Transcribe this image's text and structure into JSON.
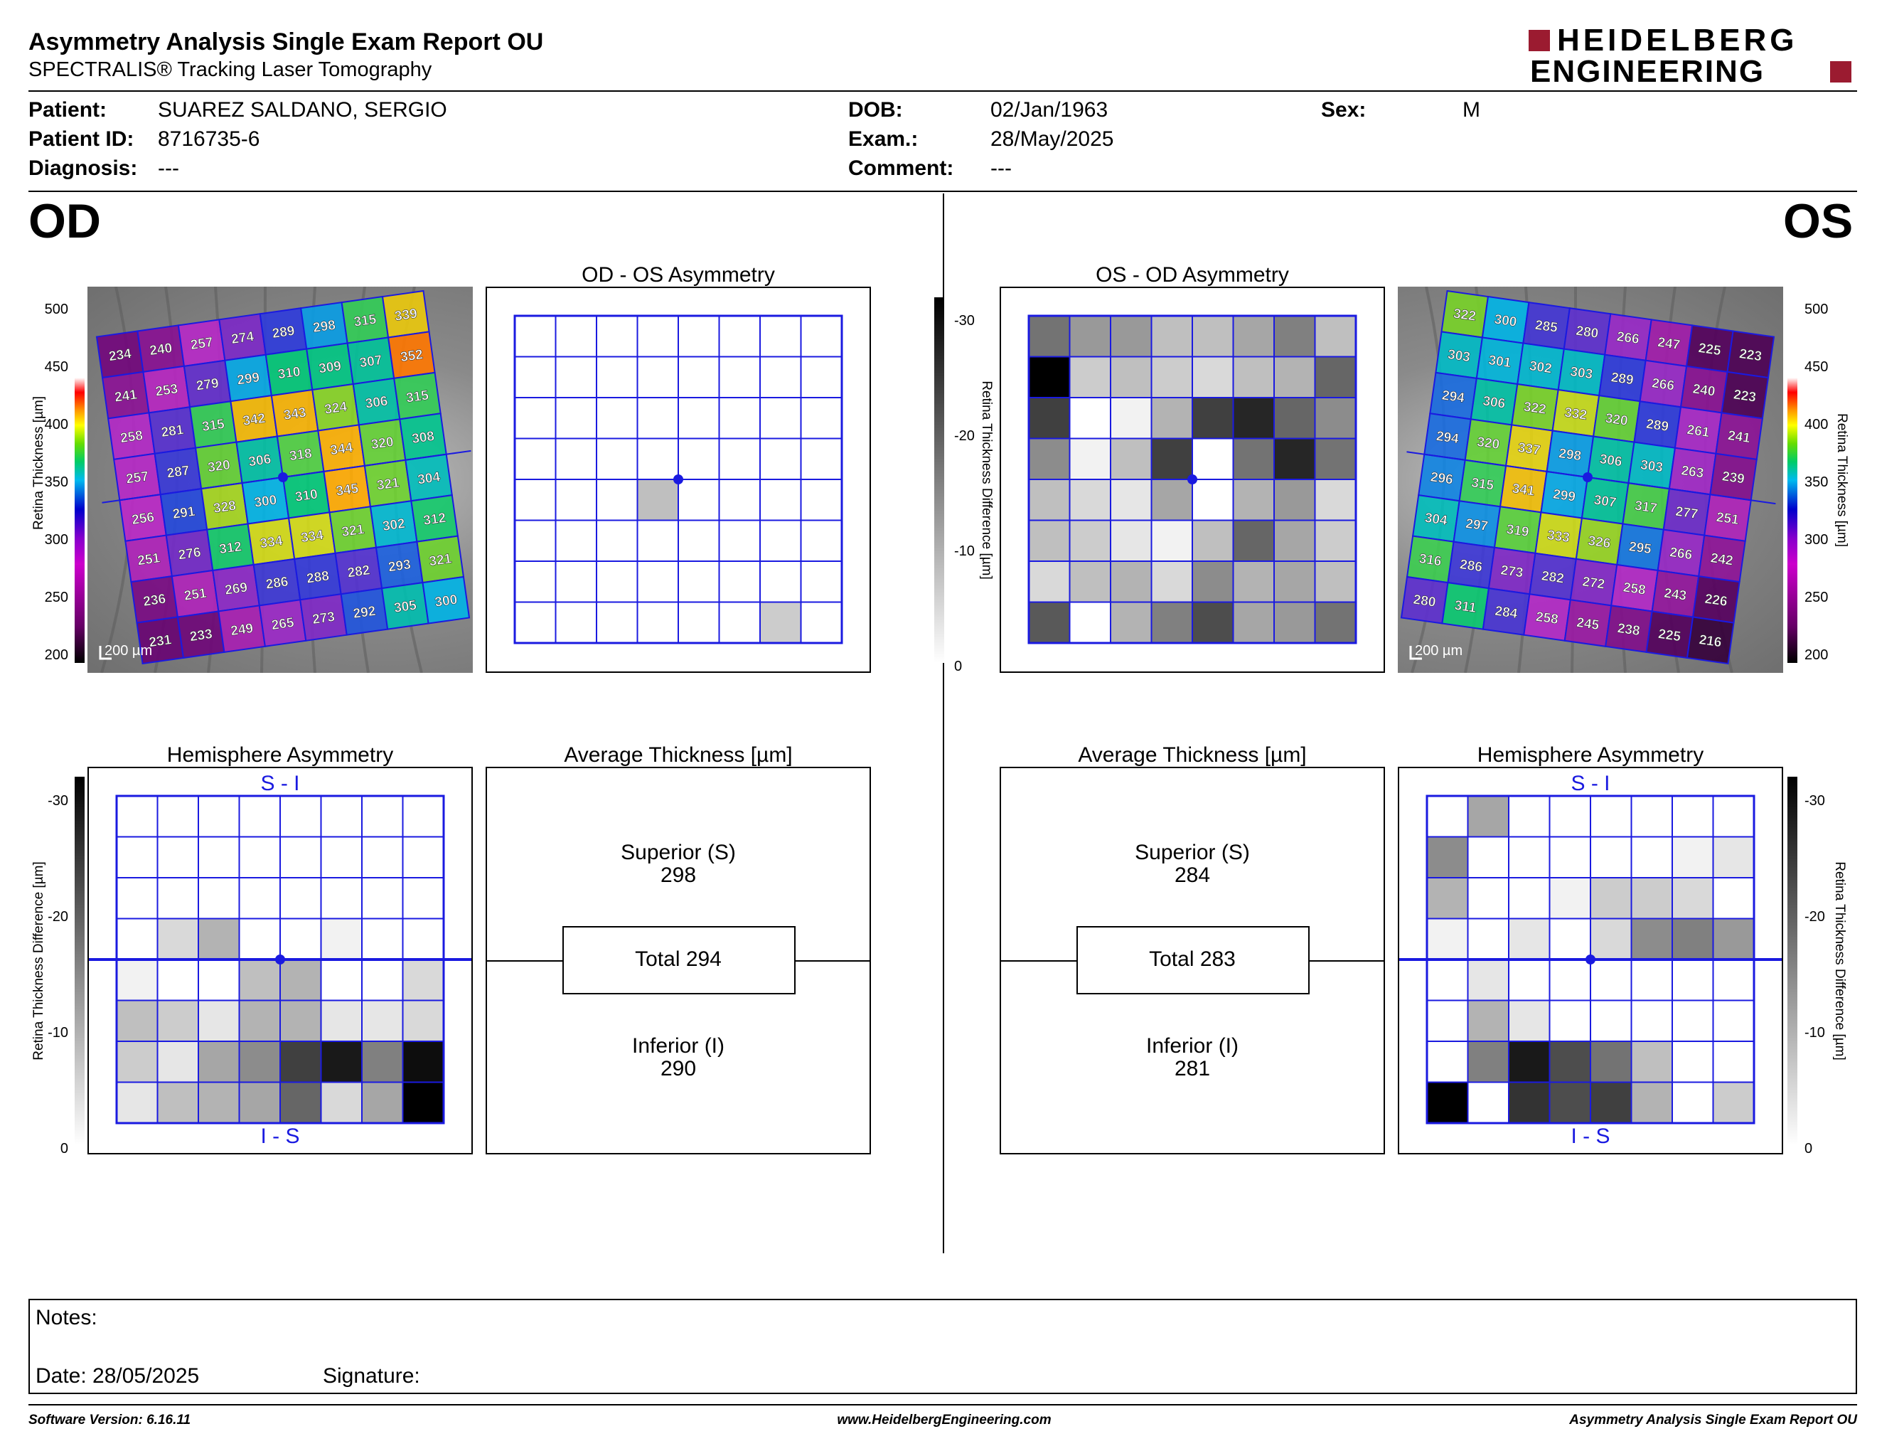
{
  "header": {
    "title": "Asymmetry Analysis Single Exam Report OU",
    "subtitle": "SPECTRALIS® Tracking Laser Tomography",
    "logo_line1": "HEIDELBERG",
    "logo_line2": "ENGINEERING"
  },
  "patient": {
    "patient_label": "Patient:",
    "patient_value": "SUAREZ SALDANO, SERGIO",
    "id_label": "Patient ID:",
    "id_value": "8716735-6",
    "diagnosis_label": "Diagnosis:",
    "diagnosis_value": "---",
    "dob_label": "DOB:",
    "dob_value": "02/Jan/1963",
    "exam_label": "Exam.:",
    "exam_value": "28/May/2025",
    "comment_label": "Comment:",
    "comment_value": "---",
    "sex_label": "Sex:",
    "sex_value": "M"
  },
  "eyes": {
    "left_label": "OD",
    "right_label": "OS"
  },
  "titles": {
    "od_os_asym": "OD - OS Asymmetry",
    "os_od_asym": "OS - OD Asymmetry",
    "hemi": "Hemisphere Asymmetry",
    "avg": "Average Thickness [µm]"
  },
  "scale": {
    "thickness_label": "Retina  Thickness [µm]",
    "thickness_ticks": [
      "500",
      "450",
      "400",
      "350",
      "300",
      "250",
      "200"
    ],
    "diff_label": "Retina Thickness Difference [µm]",
    "diff_ticks": [
      "-30",
      "-20",
      "-10",
      "0"
    ],
    "scalebar": "200 µm"
  },
  "hemi_labels": {
    "top": "S - I",
    "bottom": "I - S"
  },
  "od": {
    "grid": [
      [
        234,
        240,
        257,
        274,
        289,
        298,
        315,
        339
      ],
      [
        241,
        253,
        279,
        299,
        310,
        309,
        307,
        352
      ],
      [
        258,
        281,
        315,
        342,
        343,
        324,
        306,
        315
      ],
      [
        257,
        287,
        320,
        306,
        318,
        344,
        320,
        308
      ],
      [
        256,
        291,
        328,
        300,
        310,
        345,
        321,
        304
      ],
      [
        251,
        276,
        312,
        334,
        334,
        321,
        302,
        312
      ],
      [
        236,
        251,
        269,
        286,
        288,
        282,
        293,
        321
      ],
      [
        231,
        233,
        249,
        265,
        273,
        292,
        305,
        300
      ]
    ],
    "asym_shades": [
      [
        0,
        0,
        0,
        0,
        0,
        0,
        0,
        0
      ],
      [
        0,
        0,
        0,
        0,
        0,
        0,
        0,
        0
      ],
      [
        0,
        0,
        0,
        0,
        0,
        0,
        0,
        0
      ],
      [
        0,
        0,
        0,
        0,
        0,
        0,
        0,
        0
      ],
      [
        0,
        0,
        0,
        0.25,
        0,
        0,
        0,
        0
      ],
      [
        0,
        0,
        0,
        0,
        0,
        0,
        0,
        0
      ],
      [
        0,
        0,
        0,
        0,
        0,
        0,
        0,
        0
      ],
      [
        0,
        0,
        0,
        0,
        0,
        0,
        0.2,
        0
      ]
    ],
    "hemi_shades": [
      [
        0,
        0,
        0,
        0,
        0,
        0,
        0,
        0
      ],
      [
        0,
        0,
        0,
        0,
        0,
        0,
        0,
        0
      ],
      [
        0,
        0,
        0,
        0,
        0,
        0,
        0,
        0
      ],
      [
        0,
        0.15,
        0.3,
        0,
        0,
        0.05,
        0,
        0
      ],
      [
        0.05,
        0,
        0,
        0.25,
        0.3,
        0,
        0,
        0.15
      ],
      [
        0.25,
        0.2,
        0.1,
        0.3,
        0.3,
        0.1,
        0.1,
        0.15
      ],
      [
        0.2,
        0.1,
        0.35,
        0.45,
        0.75,
        0.9,
        0.5,
        0.95
      ],
      [
        0.1,
        0.25,
        0.3,
        0.35,
        0.6,
        0.15,
        0.35,
        1.0
      ]
    ],
    "superior_label": "Superior (S)",
    "superior_value": "298",
    "total_label": "Total 294",
    "inferior_label": "Inferior (I)",
    "inferior_value": "290"
  },
  "os": {
    "grid": [
      [
        322,
        300,
        285,
        280,
        266,
        247,
        225,
        223
      ],
      [
        303,
        301,
        302,
        303,
        289,
        266,
        240,
        223
      ],
      [
        294,
        306,
        322,
        332,
        320,
        289,
        261,
        241
      ],
      [
        294,
        320,
        337,
        298,
        306,
        303,
        263,
        239
      ],
      [
        296,
        315,
        341,
        299,
        307,
        317,
        277,
        251
      ],
      [
        304,
        297,
        319,
        333,
        326,
        295,
        266,
        242
      ],
      [
        316,
        286,
        273,
        282,
        272,
        258,
        243,
        226
      ],
      [
        280,
        311,
        284,
        258,
        245,
        238,
        225,
        216
      ]
    ],
    "asym_shades": [
      [
        0.55,
        0.4,
        0.4,
        0.25,
        0.25,
        0.35,
        0.5,
        0.25
      ],
      [
        1.0,
        0.2,
        0.25,
        0.2,
        0.15,
        0.25,
        0.3,
        0.6
      ],
      [
        0.75,
        0,
        0.05,
        0.3,
        0.75,
        0.85,
        0.6,
        0.45
      ],
      [
        0.45,
        0.05,
        0.25,
        0.75,
        0,
        0.55,
        0.85,
        0.55
      ],
      [
        0.25,
        0.15,
        0.1,
        0.35,
        0,
        0.3,
        0.4,
        0.15
      ],
      [
        0.25,
        0.2,
        0.1,
        0.05,
        0.25,
        0.6,
        0.35,
        0.2
      ],
      [
        0.15,
        0.25,
        0.3,
        0.15,
        0.45,
        0.3,
        0.35,
        0.25
      ],
      [
        0.65,
        0,
        0.3,
        0.5,
        0.7,
        0.35,
        0.4,
        0.55
      ]
    ],
    "hemi_shades": [
      [
        0,
        0.35,
        0,
        0,
        0,
        0,
        0,
        0
      ],
      [
        0.45,
        0,
        0,
        0,
        0,
        0,
        0.05,
        0.1
      ],
      [
        0.3,
        0,
        0,
        0.05,
        0.2,
        0.2,
        0.15,
        0
      ],
      [
        0.05,
        0,
        0.1,
        0,
        0.15,
        0.45,
        0.5,
        0.4
      ],
      [
        0,
        0.1,
        0,
        0,
        0,
        0,
        0,
        0
      ],
      [
        0,
        0.3,
        0.1,
        0,
        0,
        0,
        0,
        0
      ],
      [
        0,
        0.5,
        0.9,
        0.7,
        0.55,
        0.25,
        0,
        0
      ],
      [
        1.0,
        0,
        0.8,
        0.7,
        0.75,
        0.3,
        0,
        0.2
      ]
    ],
    "superior_label": "Superior (S)",
    "superior_value": "284",
    "total_label": "Total 283",
    "inferior_label": "Inferior (I)",
    "inferior_value": "281"
  },
  "notes": {
    "notes_label": "Notes:",
    "date_label": "Date: 28/05/2025",
    "signature_label": "Signature:"
  },
  "footer": {
    "software": "Software Version: 6.16.11",
    "website": "www.HeidelbergEngineering.com",
    "report": "Asymmetry Analysis Single Exam Report OU"
  }
}
